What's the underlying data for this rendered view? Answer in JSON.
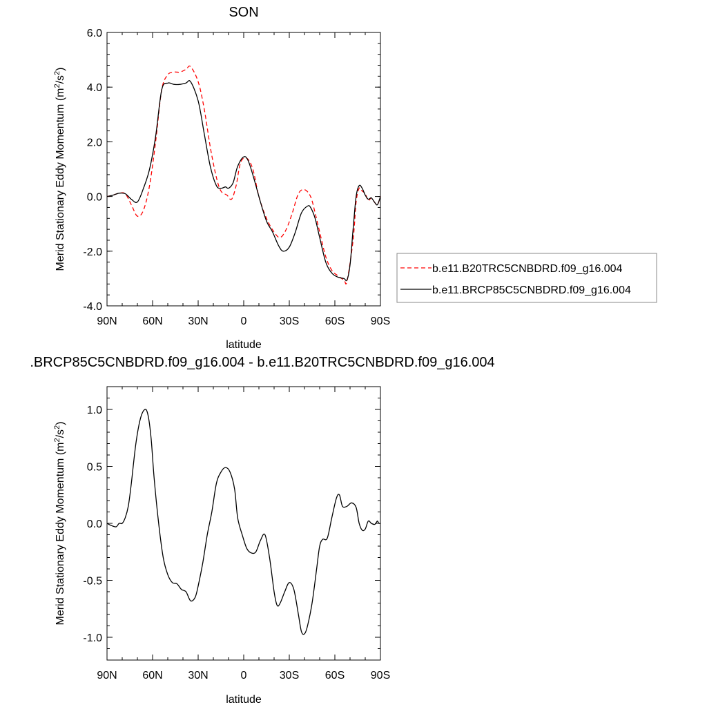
{
  "chart_data": [
    {
      "type": "line",
      "title": "SON",
      "xlabel": "latitude",
      "ylabel": "Merid Stationary Eddy Momentum (m",
      "ylabel_unit_sup1": "2",
      "ylabel_unit_mid": "/s",
      "ylabel_unit_sup2": "2",
      "ylabel_unit_end": ")",
      "xlim": [
        90,
        -90
      ],
      "ylim": [
        -4.0,
        6.0
      ],
      "xticks": [
        {
          "value": 90,
          "label": "90N"
        },
        {
          "value": 60,
          "label": "60N"
        },
        {
          "value": 30,
          "label": "30N"
        },
        {
          "value": 0,
          "label": "0"
        },
        {
          "value": -30,
          "label": "30S"
        },
        {
          "value": -60,
          "label": "60S"
        },
        {
          "value": -90,
          "label": "90S"
        }
      ],
      "yticks": [
        {
          "value": 6.0,
          "label": "6.0"
        },
        {
          "value": 4.0,
          "label": "4.0"
        },
        {
          "value": 2.0,
          "label": "2.0"
        },
        {
          "value": 0.0,
          "label": "0.0"
        },
        {
          "value": -2.0,
          "label": "-2.0"
        },
        {
          "value": -4.0,
          "label": "-4.0"
        }
      ],
      "legend_position": "right",
      "series": [
        {
          "name": "b.e11.B20TRC5CNBDRD.f09_g16.004",
          "color": "#ff0000",
          "dash": "dashed",
          "x": [
            90,
            86,
            82,
            78,
            74,
            70,
            66,
            62,
            58,
            54,
            50,
            46,
            42,
            38,
            35,
            30,
            26,
            22,
            18,
            15,
            11,
            8,
            5,
            2,
            -2,
            -6,
            -10,
            -15,
            -20,
            -24,
            -28,
            -32,
            -36,
            -40,
            -44,
            -47,
            -50,
            -54,
            -58,
            -62,
            -66,
            -68,
            -72,
            -74,
            -76,
            -78,
            -80,
            -82,
            -84,
            -86,
            -88,
            -90
          ],
          "y": [
            0.0,
            0.05,
            0.12,
            0.1,
            -0.3,
            -0.72,
            -0.5,
            0.4,
            2.0,
            3.9,
            4.45,
            4.55,
            4.55,
            4.65,
            4.75,
            4.2,
            3.2,
            1.8,
            0.7,
            0.2,
            0.05,
            -0.1,
            0.4,
            1.25,
            1.4,
            1.0,
            0.0,
            -0.8,
            -1.3,
            -1.5,
            -1.2,
            -0.6,
            0.1,
            0.25,
            0.0,
            -0.6,
            -1.3,
            -2.2,
            -2.7,
            -2.9,
            -3.05,
            -3.1,
            -1.6,
            -0.2,
            0.3,
            0.2,
            0.1,
            -0.15,
            -0.05,
            -0.2,
            -0.3,
            0.0
          ]
        },
        {
          "name": "b.e11.BRCP85C5CNBDRD.f09_g16.004",
          "color": "#000000",
          "dash": "solid",
          "x": [
            90,
            86,
            82,
            78,
            74,
            70,
            66,
            62,
            58,
            54,
            50,
            46,
            42,
            38,
            35,
            30,
            26,
            22,
            18,
            15,
            12,
            10,
            7,
            4,
            0,
            -3,
            -7,
            -11,
            -15,
            -19,
            -23,
            -26,
            -30,
            -34,
            -38,
            -42,
            -44,
            -47,
            -50,
            -54,
            -58,
            -62,
            -66,
            -68,
            -70,
            -72,
            -74,
            -76,
            -78,
            -80,
            -82,
            -84,
            -86,
            -88,
            -90
          ],
          "y": [
            0.0,
            0.05,
            0.12,
            0.1,
            -0.1,
            -0.2,
            0.3,
            1.0,
            2.2,
            3.9,
            4.15,
            4.1,
            4.1,
            4.15,
            4.2,
            3.5,
            2.3,
            1.1,
            0.4,
            0.3,
            0.35,
            0.3,
            0.5,
            1.1,
            1.45,
            1.3,
            0.6,
            -0.2,
            -0.9,
            -1.3,
            -1.8,
            -2.0,
            -1.85,
            -1.3,
            -0.6,
            -0.35,
            -0.4,
            -0.8,
            -1.5,
            -2.4,
            -2.8,
            -2.95,
            -3.0,
            -3.05,
            -2.5,
            -1.2,
            0.0,
            0.4,
            0.3,
            0.05,
            -0.1,
            -0.05,
            -0.2,
            -0.3,
            0.0
          ]
        }
      ]
    },
    {
      "type": "line",
      "title": ".BRCP85C5CNBDRD.f09_g16.004 - b.e11.B20TRC5CNBDRD.f09_g16.004",
      "xlabel": "latitude",
      "ylabel": "Merid Stationary Eddy Momentum (m",
      "ylabel_unit_sup1": "2",
      "ylabel_unit_mid": "/s",
      "ylabel_unit_sup2": "2",
      "ylabel_unit_end": ")",
      "xlim": [
        90,
        -90
      ],
      "ylim": [
        -1.2,
        1.2
      ],
      "xticks": [
        {
          "value": 90,
          "label": "90N"
        },
        {
          "value": 60,
          "label": "60N"
        },
        {
          "value": 30,
          "label": "30N"
        },
        {
          "value": 0,
          "label": "0"
        },
        {
          "value": -30,
          "label": "30S"
        },
        {
          "value": -60,
          "label": "60S"
        },
        {
          "value": -90,
          "label": "90S"
        }
      ],
      "yticks": [
        {
          "value": 1.0,
          "label": "1.0"
        },
        {
          "value": 0.5,
          "label": "0.5"
        },
        {
          "value": 0.0,
          "label": "0.0"
        },
        {
          "value": -0.5,
          "label": "-0.5"
        },
        {
          "value": -1.0,
          "label": "-1.0"
        }
      ],
      "series": [
        {
          "color": "#000000",
          "dash": "solid",
          "x": [
            90,
            87,
            84,
            82,
            80,
            78,
            76,
            74,
            71,
            68,
            65,
            63,
            61,
            59,
            56,
            53,
            50,
            47,
            44,
            41,
            38,
            35,
            32,
            30,
            27,
            24,
            21,
            18,
            15,
            12,
            9,
            6,
            4,
            1,
            -2,
            -5,
            -8,
            -11,
            -14,
            -17,
            -20,
            -22,
            -24,
            -27,
            -30,
            -33,
            -36,
            -38,
            -40,
            -42,
            -45,
            -48,
            -50,
            -52,
            -55,
            -58,
            -61,
            -63,
            -65,
            -68,
            -71,
            -74,
            -76,
            -78,
            -80,
            -82,
            -84,
            -86,
            -87,
            -88,
            -89,
            -90
          ],
          "y": [
            0.0,
            -0.02,
            -0.03,
            0.0,
            0.0,
            0.05,
            0.15,
            0.35,
            0.7,
            0.92,
            1.0,
            0.95,
            0.75,
            0.4,
            0.0,
            -0.3,
            -0.45,
            -0.52,
            -0.53,
            -0.58,
            -0.6,
            -0.68,
            -0.65,
            -0.55,
            -0.35,
            -0.1,
            0.1,
            0.35,
            0.45,
            0.49,
            0.45,
            0.3,
            0.05,
            -0.1,
            -0.22,
            -0.26,
            -0.25,
            -0.15,
            -0.1,
            -0.3,
            -0.6,
            -0.72,
            -0.7,
            -0.6,
            -0.52,
            -0.58,
            -0.8,
            -0.95,
            -0.97,
            -0.9,
            -0.7,
            -0.4,
            -0.2,
            -0.14,
            -0.13,
            0.05,
            0.22,
            0.25,
            0.15,
            0.15,
            0.18,
            0.14,
            0.0,
            -0.06,
            -0.05,
            0.02,
            0.0,
            -0.01,
            0.0,
            0.02,
            0.0,
            0.0
          ]
        }
      ]
    }
  ]
}
